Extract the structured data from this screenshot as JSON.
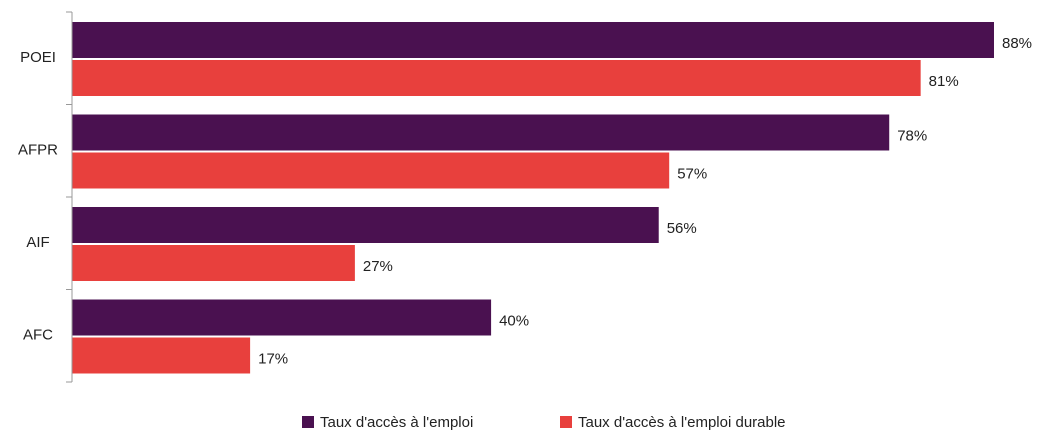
{
  "chart_data": {
    "type": "barh",
    "categories": [
      "POEI",
      "AFPR",
      "AIF",
      "AFC"
    ],
    "series": [
      {
        "name": "Taux d'accès à l'emploi",
        "color": "#4a1150",
        "values": [
          88,
          78,
          56,
          40
        ],
        "value_labels": [
          "88%",
          "78%",
          "56%",
          "40%"
        ]
      },
      {
        "name": "Taux d'accès à l'emploi durable",
        "color": "#e8403d",
        "values": [
          81,
          57,
          27,
          17
        ],
        "value_labels": [
          "81%",
          "57%",
          "27%",
          "17%"
        ]
      }
    ],
    "legend": "bottom"
  }
}
